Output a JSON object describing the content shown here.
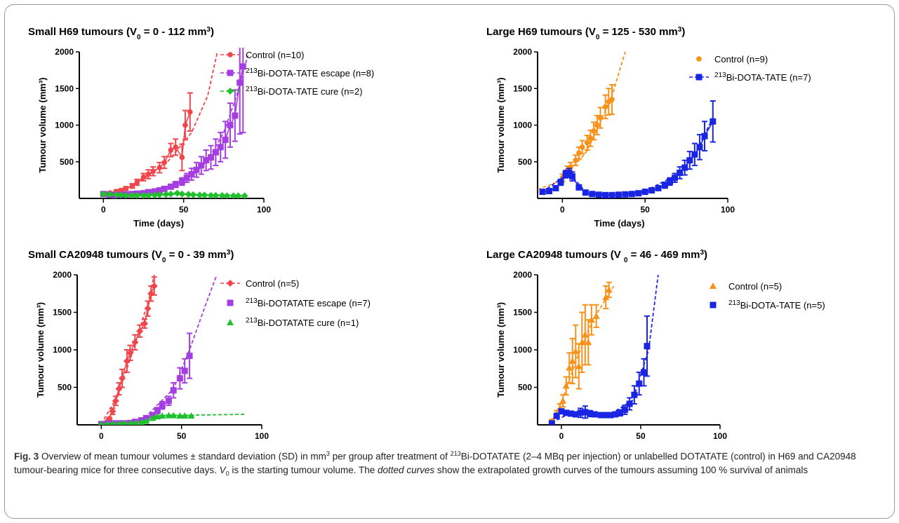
{
  "chart_data": [
    {
      "type": "scatter",
      "title_parts": [
        "Small H69 tumours (V",
        "0",
        " = 0 - 112 mm",
        "3",
        ")"
      ],
      "xlabel": "Time (days)",
      "ylabel": "Tumour volume (mm³)",
      "xlim": [
        -15,
        100
      ],
      "ylim": [
        0,
        2000
      ],
      "xticks": [
        "0",
        "50",
        "100"
      ],
      "yticks": [
        "500",
        "1000",
        "1500",
        "2000"
      ],
      "series": [
        {
          "name": [
            "Control (n=10)"
          ],
          "color": "#f0454b",
          "marker": "circle",
          "line": true,
          "x": [
            0,
            4,
            8,
            11,
            14,
            18,
            21,
            25,
            28,
            31,
            35,
            38,
            42,
            45,
            49,
            51,
            54
          ],
          "y": [
            60,
            75,
            95,
            110,
            135,
            170,
            220,
            290,
            330,
            370,
            420,
            490,
            660,
            700,
            560,
            1000,
            1180
          ],
          "err": [
            15,
            15,
            20,
            20,
            25,
            30,
            40,
            50,
            60,
            60,
            70,
            80,
            90,
            110,
            180,
            200,
            260
          ],
          "fit": [
            [
              0,
              60
            ],
            [
              20,
              190
            ],
            [
              40,
              500
            ],
            [
              55,
              900
            ],
            [
              65,
              1400
            ],
            [
              71,
              2000
            ]
          ]
        },
        {
          "name": [
            "213",
            "Bi-DOTA-TATE escape (n=8)"
          ],
          "color": "#a43ee0",
          "marker": "square",
          "line": true,
          "x": [
            0,
            4,
            7,
            11,
            14,
            18,
            21,
            25,
            28,
            32,
            35,
            38,
            42,
            45,
            49,
            52,
            55,
            58,
            61,
            64,
            67,
            70,
            73,
            76,
            79,
            82,
            85,
            87
          ],
          "y": [
            60,
            50,
            45,
            50,
            55,
            60,
            65,
            70,
            85,
            95,
            110,
            130,
            160,
            190,
            230,
            280,
            330,
            390,
            450,
            520,
            560,
            630,
            700,
            800,
            1000,
            1130,
            1580,
            1800
          ],
          "err": [
            15,
            10,
            10,
            10,
            10,
            15,
            15,
            15,
            20,
            20,
            25,
            25,
            30,
            40,
            50,
            60,
            80,
            100,
            120,
            140,
            160,
            180,
            200,
            250,
            300,
            350,
            700,
            900
          ],
          "fit": [
            [
              0,
              60
            ],
            [
              20,
              70
            ],
            [
              40,
              150
            ],
            [
              55,
              300
            ],
            [
              65,
              520
            ],
            [
              75,
              900
            ],
            [
              83,
              1400
            ],
            [
              90,
              1950
            ]
          ]
        },
        {
          "name": [
            "213",
            "Bi-DOTA-TATE cure (n=2)"
          ],
          "color": "#1fc12d",
          "marker": "diamond",
          "line": true,
          "x": [
            0,
            4,
            8,
            11,
            14,
            18,
            21,
            25,
            28,
            32,
            35,
            39,
            42,
            46,
            49,
            53,
            56,
            60,
            63,
            67,
            70,
            74,
            77,
            81,
            84,
            88
          ],
          "y": [
            60,
            55,
            50,
            45,
            40,
            40,
            40,
            40,
            40,
            45,
            50,
            55,
            60,
            70,
            60,
            55,
            50,
            45,
            45,
            40,
            40,
            40,
            35,
            35,
            35,
            35
          ],
          "err": [
            10,
            10,
            10,
            5,
            5,
            5,
            5,
            5,
            5,
            5,
            5,
            5,
            5,
            10,
            5,
            5,
            5,
            5,
            5,
            5,
            5,
            5,
            5,
            5,
            5,
            5
          ],
          "fit": [
            [
              0,
              50
            ],
            [
              45,
              60
            ],
            [
              90,
              35
            ]
          ]
        }
      ]
    },
    {
      "type": "scatter",
      "title_parts": [
        "Large H69 tumours (V",
        "0",
        " = 125 - 530 mm",
        "3",
        ")"
      ],
      "xlabel": "Time (days)",
      "ylabel": "Tumour volume (mm³)",
      "xlim": [
        -15,
        100
      ],
      "ylim": [
        0,
        2000
      ],
      "xticks": [
        "0",
        "50",
        "100"
      ],
      "yticks": [
        "500",
        "1000",
        "1500",
        "2000"
      ],
      "series": [
        {
          "name": [
            "Control (n=9)"
          ],
          "color": "#f99118",
          "marker": "circle",
          "line": false,
          "x": [
            0,
            3,
            5,
            8,
            10,
            12,
            15,
            17,
            19,
            21,
            23,
            26,
            28,
            30
          ],
          "y": [
            280,
            380,
            430,
            520,
            620,
            700,
            760,
            820,
            920,
            1000,
            1100,
            1250,
            1320,
            1350
          ],
          "err": [
            50,
            60,
            60,
            70,
            80,
            90,
            100,
            110,
            120,
            130,
            140,
            160,
            180,
            200
          ],
          "fit": [
            [
              -15,
              120
            ],
            [
              0,
              250
            ],
            [
              15,
              650
            ],
            [
              30,
              1400
            ],
            [
              38,
              2000
            ]
          ]
        },
        {
          "name": [
            "213",
            "Bi-DOTA-TATE (n=7)"
          ],
          "color": "#1a25e3",
          "marker": "square",
          "line": true,
          "x": [
            -12,
            -8,
            -4,
            -1,
            2,
            4,
            6,
            10,
            14,
            18,
            22,
            26,
            30,
            34,
            38,
            42,
            46,
            50,
            54,
            58,
            62,
            65,
            68,
            71,
            74,
            77,
            80,
            83,
            86,
            91
          ],
          "y": [
            90,
            100,
            140,
            220,
            330,
            350,
            300,
            150,
            80,
            60,
            50,
            45,
            45,
            50,
            55,
            60,
            70,
            90,
            110,
            140,
            180,
            230,
            280,
            350,
            420,
            520,
            600,
            700,
            850,
            1050
          ],
          "err": [
            20,
            20,
            30,
            40,
            50,
            60,
            60,
            30,
            20,
            10,
            10,
            10,
            10,
            10,
            10,
            10,
            15,
            20,
            25,
            30,
            40,
            50,
            60,
            80,
            100,
            120,
            150,
            170,
            200,
            280
          ],
          "fit": [
            [
              -12,
              90
            ],
            [
              4,
              350
            ],
            [
              14,
              90
            ],
            [
              30,
              45
            ],
            [
              50,
              100
            ],
            [
              70,
              330
            ],
            [
              80,
              600
            ],
            [
              91,
              1100
            ]
          ]
        }
      ]
    },
    {
      "type": "scatter",
      "title_parts": [
        "Small CA20948 tumours (V",
        "0",
        " = 0 - 39 mm",
        "3",
        ")"
      ],
      "xlabel": "Time (days)",
      "ylabel": "Tumour volume (mm³)",
      "xlim": [
        -15,
        100
      ],
      "ylim": [
        0,
        2000
      ],
      "xticks": [
        "0",
        "50",
        "100"
      ],
      "yticks": [
        "500",
        "1000",
        "1500",
        "2000"
      ],
      "series": [
        {
          "name": [
            "Control (n=5)"
          ],
          "color": "#f0454b",
          "marker": "diamond",
          "line": true,
          "x": [
            0,
            3,
            5,
            7,
            9,
            11,
            13,
            16,
            18,
            21,
            24,
            27,
            29,
            31,
            33
          ],
          "y": [
            10,
            30,
            80,
            180,
            320,
            480,
            620,
            850,
            960,
            1100,
            1250,
            1350,
            1550,
            1750,
            1850
          ],
          "err": [
            5,
            10,
            20,
            40,
            60,
            80,
            120,
            150,
            100,
            100,
            80,
            60,
            100,
            100,
            120
          ],
          "fit": [
            [
              0,
              10
            ],
            [
              10,
              380
            ],
            [
              20,
              1000
            ],
            [
              30,
              1700
            ],
            [
              33,
              2000
            ]
          ]
        },
        {
          "name": [
            "213",
            "Bi-DOTATATE escape (n=7)"
          ],
          "color": "#a43ee0",
          "marker": "square",
          "line": false,
          "x": [
            0,
            4,
            7,
            11,
            14,
            18,
            21,
            25,
            28,
            32,
            35,
            38,
            42,
            45,
            49,
            52,
            55
          ],
          "y": [
            10,
            15,
            20,
            20,
            20,
            25,
            40,
            60,
            90,
            130,
            190,
            260,
            320,
            460,
            620,
            720,
            920
          ],
          "err": [
            5,
            5,
            5,
            5,
            5,
            10,
            15,
            20,
            25,
            30,
            40,
            50,
            60,
            100,
            140,
            160,
            300
          ],
          "fit": [
            [
              0,
              10
            ],
            [
              25,
              50
            ],
            [
              45,
              480
            ],
            [
              55,
              1000
            ],
            [
              65,
              1600
            ],
            [
              72,
              2000
            ]
          ]
        },
        {
          "name": [
            "213",
            "Bi-DOTATATE cure (n=1)"
          ],
          "color": "#1fc12d",
          "marker": "triangle",
          "line": false,
          "x": [
            0,
            4,
            7,
            11,
            14,
            18,
            21,
            25,
            28,
            32,
            35,
            38,
            42,
            45,
            49,
            52,
            56
          ],
          "y": [
            10,
            10,
            12,
            15,
            15,
            15,
            20,
            30,
            50,
            90,
            110,
            120,
            125,
            125,
            120,
            120,
            120
          ],
          "err": [
            2,
            2,
            2,
            2,
            2,
            2,
            2,
            5,
            5,
            10,
            10,
            5,
            5,
            5,
            5,
            5,
            5
          ],
          "fit": [
            [
              0,
              10
            ],
            [
              30,
              60
            ],
            [
              40,
              125
            ],
            [
              90,
              140
            ]
          ]
        }
      ]
    },
    {
      "type": "scatter",
      "title_parts": [
        "Large CA20948 tumours (V ",
        "0",
        " = 46 - 469 mm",
        "3",
        ")"
      ],
      "xlabel": "Time (days)",
      "ylabel": "Tumour volume (mm³)",
      "xlim": [
        -15,
        100
      ],
      "ylim": [
        0,
        2000
      ],
      "xticks": [
        "0",
        "50",
        "100"
      ],
      "yticks": [
        "500",
        "1000",
        "1500",
        "2000"
      ],
      "series": [
        {
          "name": [
            "Control (n=5)"
          ],
          "color": "#f99118",
          "marker": "triangle",
          "line": false,
          "x": [
            -6,
            -3,
            -1,
            1,
            3,
            5,
            7,
            9,
            11,
            13,
            15,
            17,
            19,
            22,
            28,
            30
          ],
          "y": [
            50,
            150,
            220,
            320,
            520,
            760,
            850,
            980,
            780,
            1100,
            1200,
            1100,
            1400,
            1450,
            1700,
            1800
          ],
          "err": [
            20,
            40,
            60,
            80,
            120,
            200,
            300,
            350,
            300,
            400,
            400,
            300,
            200,
            150,
            150,
            100
          ],
          "fit": [
            [
              -6,
              50
            ],
            [
              0,
              300
            ],
            [
              10,
              900
            ],
            [
              20,
              1400
            ],
            [
              33,
              1850
            ]
          ]
        },
        {
          "name": [
            "213",
            "Bi-DOTA-TATE (n=5)"
          ],
          "color": "#1a25e3",
          "marker": "square",
          "line": false,
          "x": [
            -6,
            -3,
            0,
            3,
            6,
            9,
            12,
            15,
            18,
            21,
            25,
            28,
            31,
            34,
            37,
            40,
            43,
            46,
            49,
            52,
            54
          ],
          "y": [
            20,
            120,
            180,
            160,
            150,
            140,
            160,
            170,
            150,
            140,
            130,
            130,
            130,
            140,
            160,
            200,
            280,
            400,
            550,
            700,
            1050
          ],
          "err": [
            10,
            20,
            30,
            30,
            30,
            30,
            60,
            80,
            40,
            30,
            20,
            20,
            20,
            30,
            40,
            60,
            80,
            120,
            150,
            180,
            400
          ],
          "fit": [
            [
              -6,
              30
            ],
            [
              5,
              150
            ],
            [
              30,
              130
            ],
            [
              45,
              330
            ],
            [
              55,
              1000
            ],
            [
              61,
              2000
            ]
          ]
        }
      ]
    }
  ],
  "caption": {
    "fig_label": "Fig. 3",
    "t1": " Overview of mean tumour volumes ± standard deviation (SD) in mm",
    "t1_sup": "3",
    "t2": " per group after treatment of ",
    "t2_sup": "213",
    "t3": "Bi-DOTATATE (2–4 MBq per injection) or unlabelled DOTATATE (control) in H69 and CA20948 tumour-bearing mice for three consecutive days. ",
    "v_letter": "V",
    "v_sub": "0",
    "t4": " is the starting tumour volume. The ",
    "t4_italic": "dotted curves",
    "t5": " show the extrapolated growth curves of the tumours assuming 100 % survival of animals"
  }
}
